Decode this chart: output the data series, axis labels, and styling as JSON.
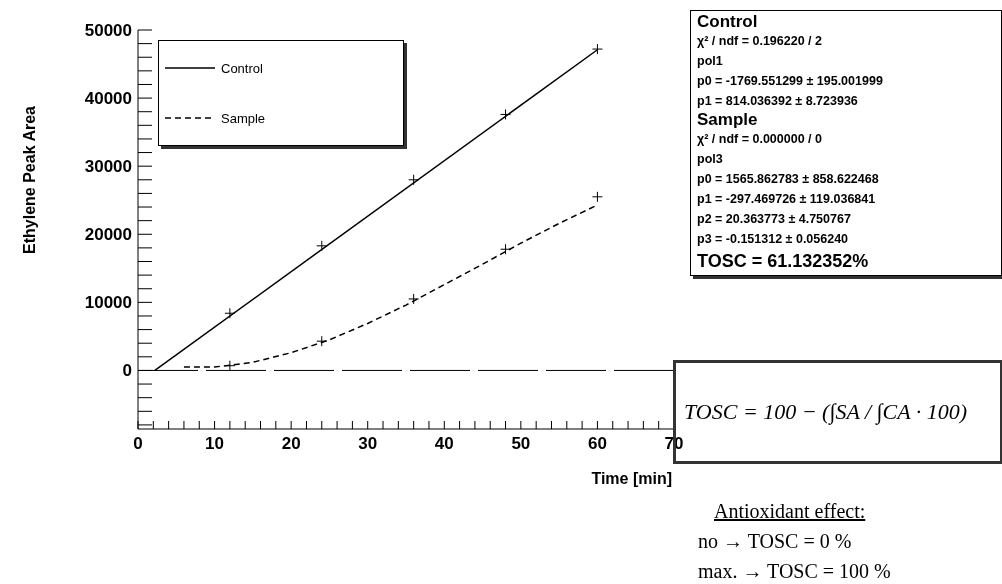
{
  "chart_data": {
    "type": "line",
    "xlabel": "Time [min]",
    "ylabel": "Ethylene Peak Area",
    "xlim": [
      0,
      70
    ],
    "xticks": [
      0,
      {
        "value": 2,
        "label": null
      },
      {
        "value": 4,
        "label": null
      },
      {
        "value": 6,
        "label": null
      },
      {
        "value": 8,
        "label": null
      },
      10,
      {
        "value": 12,
        "label": null
      },
      {
        "value": 14,
        "label": null
      },
      {
        "value": 16,
        "label": null
      },
      {
        "value": 18,
        "label": null
      },
      20,
      {
        "value": 22,
        "label": null
      },
      {
        "value": 24,
        "label": null
      },
      {
        "value": 26,
        "label": null
      },
      {
        "value": 28,
        "label": null
      },
      30,
      {
        "value": 32,
        "label": null
      },
      {
        "value": 34,
        "label": null
      },
      {
        "value": 36,
        "label": null
      },
      {
        "value": 38,
        "label": null
      },
      40,
      {
        "value": 42,
        "label": null
      },
      {
        "value": 44,
        "label": null
      },
      {
        "value": 46,
        "label": null
      },
      {
        "value": 48,
        "label": null
      },
      50,
      {
        "value": 52,
        "label": null
      },
      {
        "value": 54,
        "label": null
      },
      {
        "value": 56,
        "label": null
      },
      {
        "value": 58,
        "label": null
      },
      60,
      {
        "value": 62,
        "label": null
      },
      {
        "value": 64,
        "label": null
      },
      {
        "value": 66,
        "label": null
      },
      {
        "value": 68,
        "label": null
      },
      70
    ],
    "ylim": [
      -8600,
      50000
    ],
    "yticks": [
      {
        "value": -8000,
        "label": null
      },
      {
        "value": -6000,
        "label": null
      },
      {
        "value": -4000,
        "label": null
      },
      {
        "value": -2000,
        "label": null
      },
      0,
      {
        "value": 2000,
        "label": null
      },
      {
        "value": 4000,
        "label": null
      },
      {
        "value": 6000,
        "label": null
      },
      {
        "value": 8000,
        "label": null
      },
      10000,
      {
        "value": 12000,
        "label": null
      },
      {
        "value": 14000,
        "label": null
      },
      {
        "value": 16000,
        "label": null
      },
      {
        "value": 18000,
        "label": null
      },
      20000,
      {
        "value": 22000,
        "label": null
      },
      {
        "value": 24000,
        "label": null
      },
      {
        "value": 26000,
        "label": null
      },
      {
        "value": 28000,
        "label": null
      },
      30000,
      {
        "value": 32000,
        "label": null
      },
      {
        "value": 34000,
        "label": null
      },
      {
        "value": 36000,
        "label": null
      },
      {
        "value": 38000,
        "label": null
      },
      40000,
      {
        "value": 42000,
        "label": null
      },
      {
        "value": 44000,
        "label": null
      },
      {
        "value": 46000,
        "label": null
      },
      {
        "value": 48000,
        "label": null
      },
      50000
    ],
    "grid": false,
    "legend": "top left",
    "series": [
      {
        "name": "Control",
        "color": "#000000",
        "line_style": "solid",
        "marker": "none",
        "x": [
          2.2,
          60
        ],
        "values": [
          0,
          47100
        ]
      },
      {
        "name": "Sample",
        "color": "#000000",
        "line_style": "dashed",
        "marker": "none",
        "x": [
          6,
          10,
          15,
          20,
          25,
          30,
          35,
          40,
          45,
          50,
          55,
          60
        ],
        "values": [
          500,
          500,
          1200,
          2600,
          4500,
          6900,
          9600,
          12600,
          15600,
          18700,
          21600,
          24300
        ]
      },
      {
        "type": "scatter",
        "color": "#000000",
        "marker": "cross",
        "x": [
          12,
          24,
          36,
          48,
          60
        ],
        "values": [
          8400,
          18300,
          28000,
          37600,
          47200
        ]
      },
      {
        "type": "scatter",
        "color": "#000000",
        "marker": "cross",
        "x": [
          12,
          24,
          36,
          48,
          60
        ],
        "values": [
          700,
          4300,
          10500,
          17800,
          25500
        ]
      }
    ],
    "ref_lines": [
      {
        "axis": "y",
        "value": 0,
        "line_style": "dashed",
        "color": "#000000"
      }
    ],
    "annotations": [
      "Control",
      "χ² / ndf = 0.196220 / 2",
      "pol1",
      "p0 = -1769.551299 ± 195.001999",
      "p1 = 814.036392 ± 8.723936",
      "Sample",
      "χ² / ndf = 0.000000 / 0",
      "pol3",
      "p0 = 1565.862783 ± 858.622468",
      "p1 = -297.469726 ± 119.036841",
      "p2 = 20.363773 ± 4.750767",
      "p3 = -0.151312 ± 0.056240",
      "TOSC = 61.132352%",
      "TOSC = 100 − (∫SA / ∫CA · 100)",
      "Antioxidant effect:",
      "no → TOSC = 0 %",
      "max. → TOSC = 100 %"
    ]
  }
}
